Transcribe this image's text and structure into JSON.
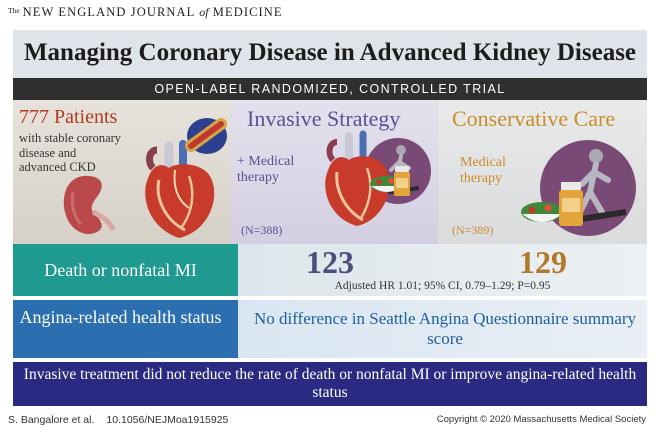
{
  "journal": {
    "prefix": "The",
    "name_part1": "NEW ENGLAND JOURNAL",
    "of": "of",
    "name_part2": "MEDICINE"
  },
  "title": "Managing Coronary Disease in Advanced Kidney Disease",
  "design": "OPEN-LABEL RANDOMIZED, CONTROLLED TRIAL",
  "patients": {
    "count_label": "777 Patients",
    "description": "with stable coronary disease and advanced CKD"
  },
  "invasive": {
    "title": "Invasive Strategy",
    "medical": "+ Medical therapy",
    "n": "(N=388)"
  },
  "conservative": {
    "title": "Conservative Care",
    "medical": "Medical therapy",
    "n": "(N=389)"
  },
  "outcome1": {
    "label": "Death or nonfatal MI",
    "invasive_value": "123",
    "conservative_value": "129",
    "stat": "Adjusted HR 1.01; 95% CI, 0.79–1.29; P=0.95"
  },
  "outcome2": {
    "label": "Angina-related health status",
    "result": "No difference in Seattle Angina Questionnaire summary score"
  },
  "conclusion": "Invasive treatment did not reduce the rate of death or nonfatal MI or improve angina-related health status",
  "footer": {
    "authors": "S. Bangalore et al.",
    "doi": "10.1056/NEJMoa1915925",
    "copyright": "Copyright © 2020 Massachusetts Medical Society"
  },
  "colors": {
    "teal": "#1f9a91",
    "blue": "#2b6fb0",
    "navy": "#2a2a82",
    "purple": "#5a5094",
    "gold": "#c98c2e",
    "red": "#b23a1f"
  }
}
